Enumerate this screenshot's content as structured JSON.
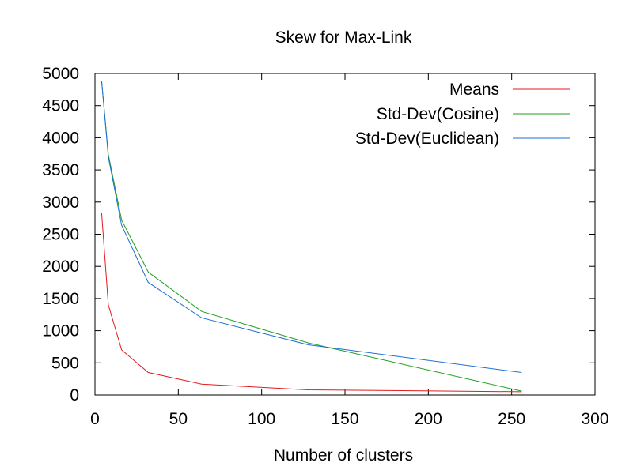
{
  "chart_data": {
    "type": "line",
    "title": "Skew for Max-Link",
    "xlabel": "Number of clusters",
    "ylabel": "",
    "xlim": [
      0,
      300
    ],
    "ylim": [
      0,
      5000
    ],
    "xticks": [
      0,
      50,
      100,
      150,
      200,
      250,
      300
    ],
    "yticks": [
      0,
      500,
      1000,
      1500,
      2000,
      2500,
      3000,
      3500,
      4000,
      4500,
      5000
    ],
    "grid": false,
    "legend_position": "top-right",
    "series": [
      {
        "name": "Means",
        "color": "#e41a1c",
        "x": [
          4,
          8,
          16,
          32,
          64,
          128,
          256
        ],
        "y": [
          2830,
          1400,
          700,
          350,
          170,
          80,
          50
        ]
      },
      {
        "name": "Std-Dev(Cosine)",
        "color": "#1fa01f",
        "x": [
          4,
          8,
          16,
          32,
          64,
          128,
          256
        ],
        "y": [
          4880,
          3740,
          2720,
          1910,
          1300,
          810,
          60
        ]
      },
      {
        "name": "Std-Dev(Euclidean)",
        "color": "#1e6fd9",
        "x": [
          4,
          8,
          16,
          32,
          64,
          128,
          256
        ],
        "y": [
          4890,
          3700,
          2640,
          1750,
          1200,
          780,
          350
        ]
      }
    ]
  }
}
